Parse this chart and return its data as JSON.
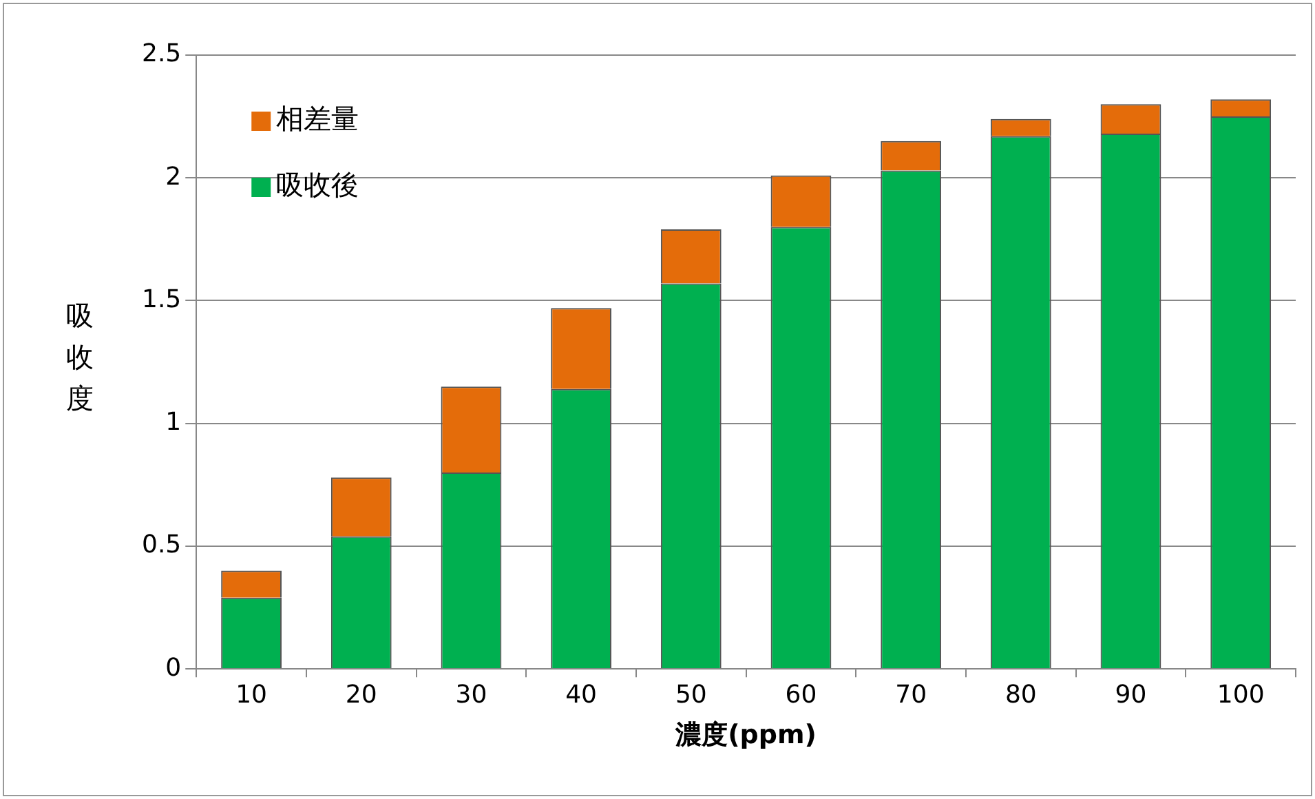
{
  "chart_data": {
    "type": "bar",
    "stacked": true,
    "xlabel": "濃度(ppm)",
    "ylabel": "吸收度",
    "categories": [
      "10",
      "20",
      "30",
      "40",
      "50",
      "60",
      "70",
      "80",
      "90",
      "100"
    ],
    "series": [
      {
        "name": "吸收後",
        "color": "#00b050",
        "values": [
          0.29,
          0.54,
          0.8,
          1.14,
          1.57,
          1.8,
          2.03,
          2.17,
          2.18,
          2.25
        ]
      },
      {
        "name": "相差量",
        "color": "#e46c0a",
        "values": [
          0.11,
          0.24,
          0.35,
          0.33,
          0.22,
          0.21,
          0.12,
          0.07,
          0.12,
          0.07
        ]
      }
    ],
    "ylim": [
      0,
      2.5
    ],
    "yticks": [
      0,
      0.5,
      1,
      1.5,
      2,
      2.5
    ],
    "grid": "y",
    "legend": "top left"
  }
}
